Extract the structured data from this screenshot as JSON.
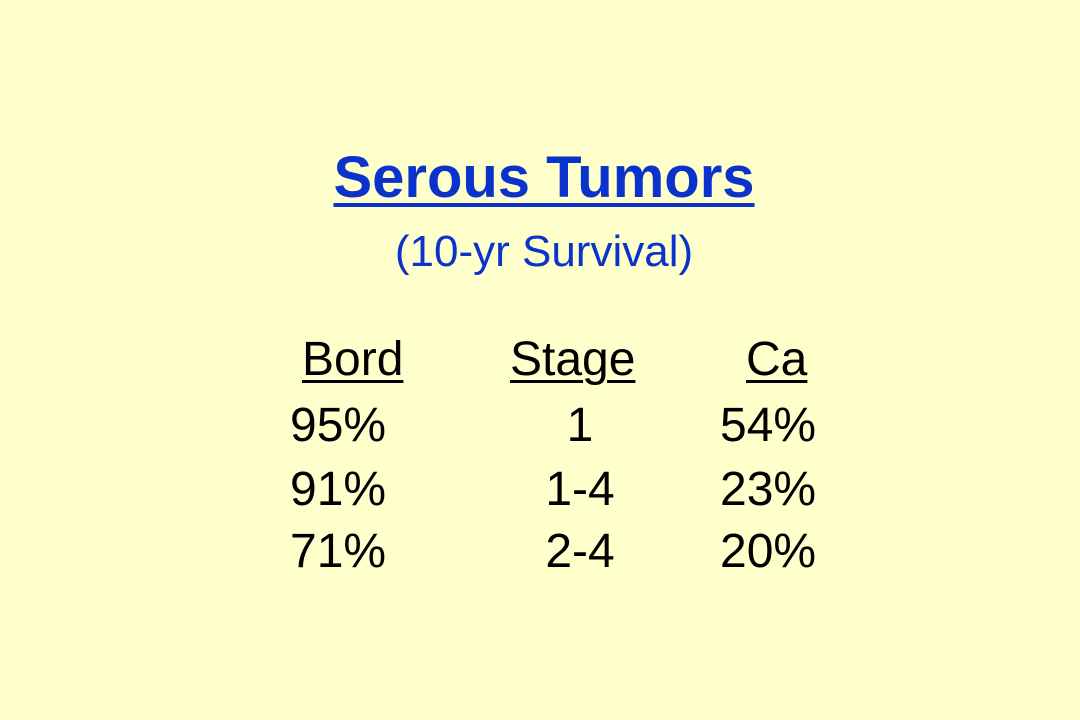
{
  "slide": {
    "title": "Serous Tumors",
    "subtitle": "(10-yr Survival)"
  },
  "table": {
    "headers": [
      "Bord",
      "Stage",
      "Ca"
    ],
    "rows": [
      [
        "95%",
        "1",
        "54%"
      ],
      [
        "91%",
        "1-4",
        "23%"
      ],
      [
        "71%",
        "2-4",
        "20%"
      ]
    ]
  },
  "colors": {
    "background": "#ffffcc",
    "title": "#0b33cc",
    "body_text": "#000000"
  }
}
